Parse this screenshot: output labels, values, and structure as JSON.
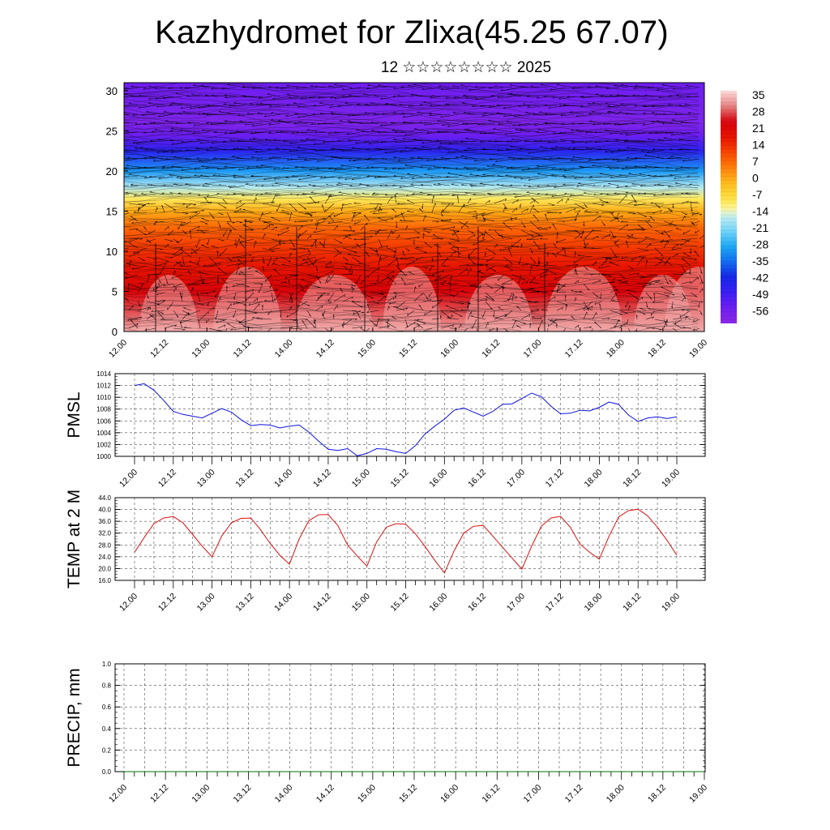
{
  "title": "Kazhydromet for Zlixa(45.25 67.07)",
  "subtitle": "12 ☆☆☆☆☆☆☆☆ 2025",
  "colors": {
    "pmsl_line": "#1010dd",
    "temp_line": "#dd1010",
    "precip_line": "#007000"
  },
  "time_labels": [
    "12.00",
    "12.12",
    "13.00",
    "13.12",
    "14.00",
    "14.12",
    "15.00",
    "15.12",
    "16.00",
    "16.12",
    "17.00",
    "17.12",
    "18.00",
    "18.12",
    "19.00"
  ],
  "chart_data": [
    {
      "id": "crossection",
      "type": "heatmap",
      "title": "",
      "xlabel": "",
      "ylabel": "",
      "ylim": [
        0,
        31
      ],
      "yticks": [
        0,
        5,
        10,
        15,
        20,
        25,
        30
      ],
      "x_tick_labels": [
        "12.00",
        "12.12",
        "13.00",
        "13.12",
        "14.00",
        "14.12",
        "15.00",
        "15.12",
        "16.00",
        "16.12",
        "17.00",
        "17.12",
        "18.00",
        "18.12",
        "19.00"
      ],
      "colorbar": {
        "labels": [
          "35",
          "28",
          "21",
          "14",
          "7",
          "0",
          "-7",
          "-14",
          "-21",
          "-28",
          "-35",
          "-42",
          "-49",
          "-56"
        ],
        "range": [
          -63,
          42
        ]
      },
      "vertical_profile": {
        "heights": [
          0,
          2,
          5,
          8,
          10,
          13,
          15,
          16.5,
          18,
          20,
          22.5,
          24.5,
          26,
          28,
          31
        ],
        "values": [
          38,
          33,
          27,
          21,
          17,
          10,
          2,
          -8,
          -16,
          -30,
          -46,
          -56,
          -60,
          -58,
          -56
        ]
      },
      "wind_field": "arrows"
    },
    {
      "id": "pmsl",
      "type": "line",
      "ylabel": "PMSL",
      "ylim": [
        1000,
        1014
      ],
      "yticks": [
        "1000",
        "1002",
        "1004",
        "1006",
        "1008",
        "1010",
        "1012",
        "1014"
      ],
      "x_tick_labels": [
        "12.00",
        "12.12",
        "13.00",
        "13.12",
        "14.00",
        "14.12",
        "15.00",
        "15.12",
        "16.00",
        "16.12",
        "17.00",
        "17.12",
        "18.00",
        "18.12",
        "19.00"
      ],
      "grid": true,
      "series": [
        {
          "x": [
            0,
            3,
            6,
            9,
            12,
            15,
            18,
            21,
            24,
            27,
            30,
            33,
            36,
            39,
            42,
            45,
            48,
            51,
            54,
            57,
            60,
            63,
            66,
            69,
            72,
            75,
            78,
            81,
            84,
            87,
            90,
            93,
            96,
            99,
            102,
            105,
            108,
            111,
            114,
            117,
            120,
            123,
            126,
            129,
            132,
            135,
            138,
            141,
            144,
            147,
            150,
            153,
            156,
            159,
            162,
            165,
            168
          ],
          "values": [
            1012,
            1012.3,
            1011.2,
            1009.5,
            1007.6,
            1007.1,
            1006.8,
            1006.5,
            1007.3,
            1008.1,
            1007.5,
            1006.2,
            1005.2,
            1005.4,
            1005.3,
            1004.8,
            1005.1,
            1005.3,
            1004.1,
            1002.6,
            1001.2,
            1001.0,
            1001.3,
            1000.1,
            1000.5,
            1001.3,
            1001.2,
            1000.8,
            1000.5,
            1001.8,
            1003.8,
            1005.1,
            1006.3,
            1007.8,
            1008.2,
            1007.5,
            1006.8,
            1007.6,
            1008.8,
            1008.9,
            1009.8,
            1010.7,
            1010.1,
            1008.5,
            1007.2,
            1007.3,
            1007.8,
            1007.7,
            1008.3,
            1009.2,
            1008.8,
            1007.0,
            1005.9,
            1006.5,
            1006.7,
            1006.4,
            1006.7
          ]
        }
      ]
    },
    {
      "id": "temp",
      "type": "line",
      "ylabel": "TEMP at 2 M",
      "ylim": [
        16,
        44
      ],
      "yticks": [
        "16.0",
        "20.0",
        "24.0",
        "28.0",
        "32.0",
        "36.0",
        "40.0",
        "44.0"
      ],
      "x_tick_labels": [
        "12.00",
        "12.12",
        "13.00",
        "13.12",
        "14.00",
        "14.12",
        "15.00",
        "15.12",
        "16.00",
        "16.12",
        "17.00",
        "17.12",
        "18.00",
        "18.12",
        "19.00"
      ],
      "grid": true,
      "series": [
        {
          "x": [
            0,
            3,
            6,
            9,
            12,
            15,
            18,
            21,
            24,
            27,
            30,
            33,
            36,
            39,
            42,
            45,
            48,
            51,
            54,
            57,
            60,
            63,
            66,
            69,
            72,
            75,
            78,
            81,
            84,
            87,
            90,
            93,
            96,
            99,
            102,
            105,
            108,
            111,
            114,
            117,
            120,
            123,
            126,
            129,
            132,
            135,
            138,
            141,
            144,
            147,
            150,
            153,
            156,
            159,
            162,
            165,
            168
          ],
          "values": [
            25.5,
            30.5,
            35.2,
            37.1,
            37.6,
            35.5,
            31.5,
            27.5,
            24.0,
            31.0,
            35.5,
            37.0,
            37.1,
            33.2,
            28.5,
            24.5,
            21.5,
            30.0,
            36.2,
            38.2,
            38.3,
            34.5,
            28.0,
            24.2,
            20.8,
            29.0,
            34.0,
            35.2,
            35.0,
            31.8,
            27.5,
            22.8,
            18.5,
            26.0,
            32.0,
            34.3,
            34.6,
            31.0,
            27.2,
            23.5,
            19.8,
            27.5,
            34.3,
            37.1,
            37.7,
            34.0,
            28.3,
            25.5,
            23.2,
            31.0,
            37.5,
            39.6,
            40.1,
            37.8,
            34.0,
            29.5,
            24.5
          ]
        }
      ]
    },
    {
      "id": "precip",
      "type": "line",
      "ylabel": "PRECIP, mm",
      "ylim": [
        0,
        1
      ],
      "yticks": [
        "0.0",
        "0.2",
        "0.4",
        "0.6",
        "0.8",
        "1.0"
      ],
      "x_tick_labels": [
        "12.00",
        "12.12",
        "13.00",
        "13.12",
        "14.00",
        "14.12",
        "15.00",
        "15.12",
        "16.00",
        "16.12",
        "17.00",
        "17.12",
        "18.00",
        "18.12",
        "19.00"
      ],
      "grid": true,
      "series": [
        {
          "x": [
            0,
            168
          ],
          "values": [
            0,
            0
          ]
        }
      ]
    }
  ]
}
